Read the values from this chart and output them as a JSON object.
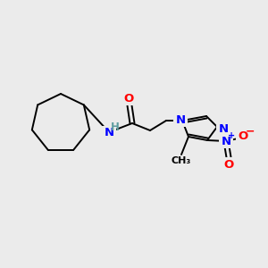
{
  "background_color": "#ebebeb",
  "bond_color": "#000000",
  "atom_colors": {
    "N": "#0000ff",
    "O": "#ff0000",
    "H": "#5f9ea0",
    "C": "#000000"
  },
  "figsize": [
    3.0,
    3.0
  ],
  "dpi": 100,
  "bond_lw": 1.4,
  "font_size": 9.5
}
